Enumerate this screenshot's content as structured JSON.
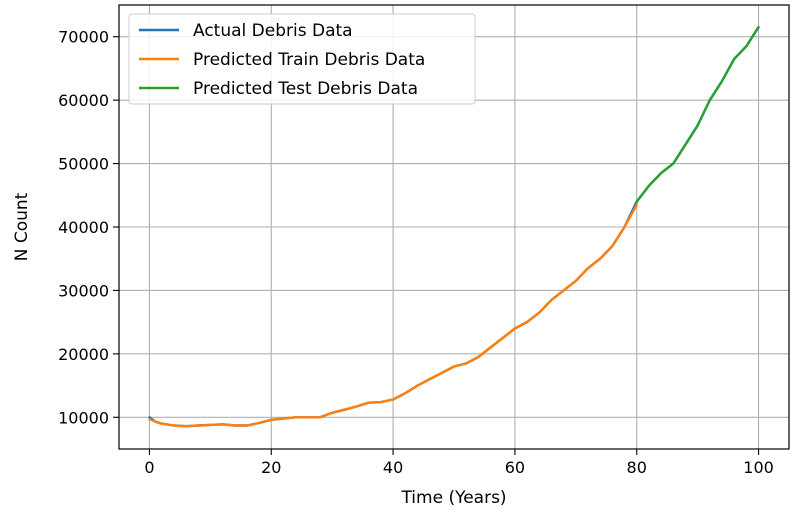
{
  "chart_data": {
    "type": "line",
    "xlabel": "Time (Years)",
    "ylabel": "N Count",
    "xlim": [
      -5,
      105
    ],
    "ylim": [
      5000,
      75000
    ],
    "xticks": [
      0,
      20,
      40,
      60,
      80,
      100
    ],
    "yticks": [
      10000,
      20000,
      30000,
      40000,
      50000,
      60000,
      70000
    ],
    "grid": true,
    "legend_position": "top-left",
    "series": [
      {
        "name": "Actual Debris Data",
        "color": "#1f77b4",
        "x": [
          0,
          1,
          2,
          4,
          6,
          8,
          10,
          12,
          14,
          16,
          18,
          20,
          22,
          24,
          26,
          28,
          30,
          32,
          34,
          36,
          38,
          40,
          42,
          44,
          46,
          48,
          50,
          52,
          54,
          56,
          58,
          60,
          62,
          64,
          66,
          68,
          70,
          72,
          74,
          76,
          78,
          80,
          82,
          84,
          86,
          88,
          90,
          92,
          94,
          96,
          98,
          100
        ],
        "y": [
          10000,
          9300,
          9000,
          8700,
          8600,
          8700,
          8800,
          8900,
          8700,
          8700,
          9100,
          9600,
          9800,
          10000,
          10000,
          10000,
          10700,
          11200,
          11700,
          12300,
          12400,
          12800,
          13800,
          15000,
          16000,
          17000,
          18000,
          18500,
          19500,
          21000,
          22500,
          24000,
          25000,
          26500,
          28500,
          30000,
          31500,
          33500,
          35000,
          37000,
          40000,
          44000,
          46500,
          48500,
          50000,
          53000,
          56000,
          60000,
          63000,
          66500,
          68500,
          71500
        ]
      },
      {
        "name": "Predicted Train Debris Data",
        "color": "#ff7f0e",
        "x": [
          0,
          1,
          2,
          4,
          6,
          8,
          10,
          12,
          14,
          16,
          18,
          20,
          22,
          24,
          26,
          28,
          30,
          32,
          34,
          36,
          38,
          40,
          42,
          44,
          46,
          48,
          50,
          52,
          54,
          56,
          58,
          60,
          62,
          64,
          66,
          68,
          70,
          72,
          74,
          76,
          78,
          80
        ],
        "y": [
          9700,
          9300,
          9000,
          8700,
          8600,
          8700,
          8800,
          8900,
          8700,
          8700,
          9100,
          9600,
          9800,
          10000,
          10000,
          10000,
          10700,
          11200,
          11700,
          12300,
          12400,
          12800,
          13800,
          15000,
          16000,
          17000,
          18000,
          18500,
          19500,
          21000,
          22500,
          24000,
          25000,
          26500,
          28500,
          30000,
          31500,
          33500,
          35000,
          37000,
          40000,
          43500
        ]
      },
      {
        "name": "Predicted Test Debris Data",
        "color": "#2ca02c",
        "x": [
          80,
          82,
          84,
          86,
          88,
          90,
          92,
          94,
          96,
          98,
          100
        ],
        "y": [
          44000,
          46500,
          48500,
          50000,
          53000,
          56000,
          60000,
          63000,
          66500,
          68500,
          71500
        ]
      }
    ]
  }
}
